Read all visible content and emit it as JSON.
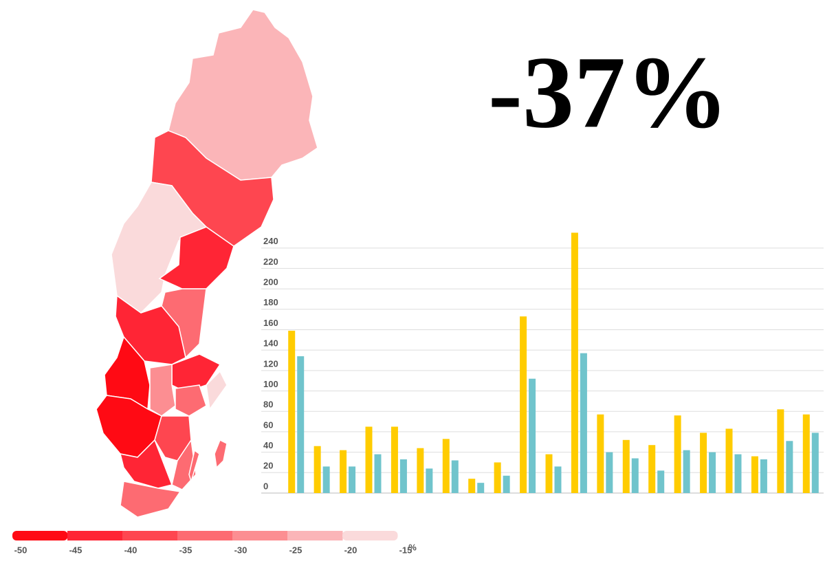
{
  "headline": "-37%",
  "chart_data": {
    "type": "bar",
    "categories": [
      null,
      null,
      null,
      null,
      null,
      null,
      null,
      null,
      null,
      null,
      null,
      null,
      null,
      null,
      null,
      null,
      null,
      null,
      null,
      null,
      null
    ],
    "series": [
      {
        "color": "#ffcc00",
        "values": [
          159,
          46,
          42,
          65,
          65,
          44,
          53,
          14,
          30,
          173,
          38,
          255,
          77,
          52,
          47,
          76,
          59,
          63,
          36,
          82,
          77
        ]
      },
      {
        "color": "#70c4cc",
        "values": [
          134,
          26,
          26,
          38,
          33,
          24,
          32,
          10,
          17,
          112,
          26,
          137,
          40,
          34,
          22,
          42,
          40,
          38,
          33,
          51,
          59
        ]
      }
    ],
    "ylim": [
      0,
      260
    ],
    "yticks": [
      0,
      20,
      40,
      60,
      80,
      100,
      120,
      140,
      160,
      180,
      200,
      220,
      240
    ],
    "grid": true
  },
  "legend": {
    "ticks": [
      -50,
      -45,
      -40,
      -35,
      -30,
      -25,
      -20,
      -15
    ],
    "unit": "%",
    "colors": [
      "#ff0a14",
      "#ff2535",
      "#fe4650",
      "#fd6b72",
      "#fc8e92",
      "#fbb5b8",
      "#fadadb"
    ]
  }
}
